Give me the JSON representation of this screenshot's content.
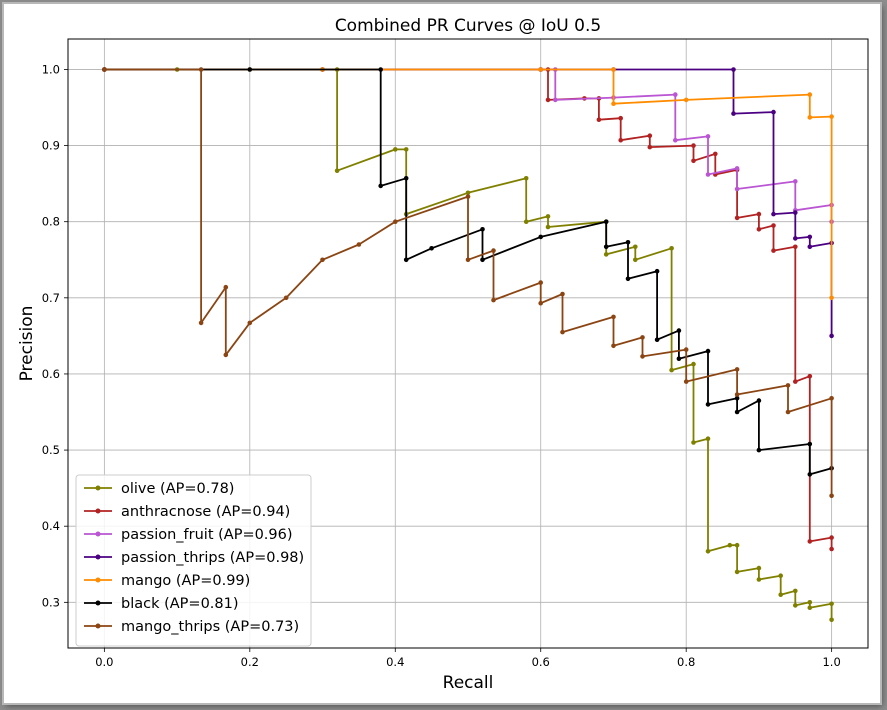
{
  "chart_data": {
    "type": "line",
    "title": "Combined PR Curves @ IoU 0.5",
    "xlabel": "Recall",
    "ylabel": "Precision",
    "xlim": [
      -0.05,
      1.05
    ],
    "ylim": [
      0.24,
      1.04
    ],
    "x_ticks": [
      "0.0",
      "0.2",
      "0.4",
      "0.6",
      "0.8",
      "1.0"
    ],
    "y_ticks": [
      "0.3",
      "0.4",
      "0.5",
      "0.6",
      "0.7",
      "0.8",
      "0.9",
      "1.0"
    ],
    "grid": true,
    "legend_position": "lower-left",
    "series": [
      {
        "name": "olive (AP=0.78)",
        "color": "#808000",
        "points": [
          [
            0,
            1
          ],
          [
            0.1,
            1
          ],
          [
            0.2,
            1
          ],
          [
            0.3,
            1
          ],
          [
            0.32,
            1
          ],
          [
            0.32,
            0.867
          ],
          [
            0.4,
            0.895
          ],
          [
            0.415,
            0.895
          ],
          [
            0.415,
            0.81
          ],
          [
            0.5,
            0.838
          ],
          [
            0.58,
            0.857
          ],
          [
            0.58,
            0.8
          ],
          [
            0.61,
            0.807
          ],
          [
            0.61,
            0.793
          ],
          [
            0.69,
            0.8
          ],
          [
            0.69,
            0.757
          ],
          [
            0.73,
            0.767
          ],
          [
            0.73,
            0.75
          ],
          [
            0.78,
            0.765
          ],
          [
            0.78,
            0.605
          ],
          [
            0.81,
            0.613
          ],
          [
            0.81,
            0.51
          ],
          [
            0.83,
            0.515
          ],
          [
            0.83,
            0.367
          ],
          [
            0.86,
            0.375
          ],
          [
            0.87,
            0.375
          ],
          [
            0.87,
            0.34
          ],
          [
            0.9,
            0.345
          ],
          [
            0.9,
            0.33
          ],
          [
            0.93,
            0.335
          ],
          [
            0.93,
            0.31
          ],
          [
            0.95,
            0.315
          ],
          [
            0.95,
            0.296
          ],
          [
            0.97,
            0.3
          ],
          [
            0.97,
            0.293
          ],
          [
            1.0,
            0.298
          ],
          [
            1.0,
            0.277
          ]
        ]
      },
      {
        "name": "anthracnose (AP=0.94)",
        "color": "#b22222",
        "points": [
          [
            0,
            1
          ],
          [
            0.3,
            1
          ],
          [
            0.6,
            1
          ],
          [
            0.61,
            1
          ],
          [
            0.61,
            0.96
          ],
          [
            0.66,
            0.962
          ],
          [
            0.68,
            0.962
          ],
          [
            0.68,
            0.934
          ],
          [
            0.71,
            0.936
          ],
          [
            0.71,
            0.907
          ],
          [
            0.75,
            0.913
          ],
          [
            0.75,
            0.898
          ],
          [
            0.81,
            0.9
          ],
          [
            0.81,
            0.88
          ],
          [
            0.84,
            0.889
          ],
          [
            0.84,
            0.862
          ],
          [
            0.87,
            0.868
          ],
          [
            0.87,
            0.805
          ],
          [
            0.9,
            0.81
          ],
          [
            0.9,
            0.79
          ],
          [
            0.92,
            0.795
          ],
          [
            0.92,
            0.762
          ],
          [
            0.95,
            0.767
          ],
          [
            0.95,
            0.59
          ],
          [
            0.97,
            0.597
          ],
          [
            0.97,
            0.38
          ],
          [
            1.0,
            0.385
          ],
          [
            1.0,
            0.37
          ]
        ]
      },
      {
        "name": "passion_fruit (AP=0.96)",
        "color": "#ba55d3",
        "points": [
          [
            0,
            1
          ],
          [
            0.3,
            1
          ],
          [
            0.6,
            1
          ],
          [
            0.62,
            1
          ],
          [
            0.62,
            0.96
          ],
          [
            0.7,
            0.963
          ],
          [
            0.785,
            0.967
          ],
          [
            0.785,
            0.907
          ],
          [
            0.83,
            0.912
          ],
          [
            0.83,
            0.862
          ],
          [
            0.87,
            0.87
          ],
          [
            0.87,
            0.843
          ],
          [
            0.95,
            0.853
          ],
          [
            0.95,
            0.815
          ],
          [
            1.0,
            0.822
          ],
          [
            1.0,
            0.8
          ]
        ]
      },
      {
        "name": "passion_thrips (AP=0.98)",
        "color": "#4b0082",
        "points": [
          [
            0,
            1
          ],
          [
            0.3,
            1
          ],
          [
            0.6,
            1
          ],
          [
            0.7,
            1
          ],
          [
            0.865,
            1
          ],
          [
            0.865,
            0.942
          ],
          [
            0.92,
            0.944
          ],
          [
            0.92,
            0.81
          ],
          [
            0.95,
            0.812
          ],
          [
            0.95,
            0.778
          ],
          [
            0.97,
            0.78
          ],
          [
            0.97,
            0.767
          ],
          [
            1.0,
            0.772
          ],
          [
            1.0,
            0.65
          ]
        ]
      },
      {
        "name": "mango (AP=0.99)",
        "color": "#ff8c00",
        "points": [
          [
            0,
            1
          ],
          [
            0.3,
            1
          ],
          [
            0.6,
            1
          ],
          [
            0.7,
            1
          ],
          [
            0.7,
            0.955
          ],
          [
            0.8,
            0.96
          ],
          [
            0.97,
            0.967
          ],
          [
            0.97,
            0.937
          ],
          [
            1.0,
            0.938
          ],
          [
            1.0,
            0.7
          ]
        ]
      },
      {
        "name": "black (AP=0.81)",
        "color": "#000000",
        "points": [
          [
            0,
            1
          ],
          [
            0.2,
            1
          ],
          [
            0.38,
            1
          ],
          [
            0.38,
            0.847
          ],
          [
            0.415,
            0.857
          ],
          [
            0.415,
            0.75
          ],
          [
            0.45,
            0.765
          ],
          [
            0.52,
            0.79
          ],
          [
            0.52,
            0.75
          ],
          [
            0.6,
            0.78
          ],
          [
            0.69,
            0.8
          ],
          [
            0.69,
            0.767
          ],
          [
            0.72,
            0.773
          ],
          [
            0.72,
            0.725
          ],
          [
            0.76,
            0.735
          ],
          [
            0.76,
            0.645
          ],
          [
            0.79,
            0.657
          ],
          [
            0.79,
            0.62
          ],
          [
            0.83,
            0.63
          ],
          [
            0.83,
            0.56
          ],
          [
            0.87,
            0.568
          ],
          [
            0.87,
            0.55
          ],
          [
            0.9,
            0.565
          ],
          [
            0.9,
            0.5
          ],
          [
            0.97,
            0.508
          ],
          [
            0.97,
            0.468
          ],
          [
            1.0,
            0.476
          ]
        ]
      },
      {
        "name": "mango_thrips (AP=0.73)",
        "color": "#8b4513",
        "points": [
          [
            0,
            1
          ],
          [
            0.133,
            1
          ],
          [
            0.133,
            0.667
          ],
          [
            0.167,
            0.714
          ],
          [
            0.167,
            0.625
          ],
          [
            0.2,
            0.667
          ],
          [
            0.25,
            0.7
          ],
          [
            0.3,
            0.75
          ],
          [
            0.35,
            0.77
          ],
          [
            0.4,
            0.8
          ],
          [
            0.5,
            0.833
          ],
          [
            0.5,
            0.75
          ],
          [
            0.535,
            0.762
          ],
          [
            0.535,
            0.697
          ],
          [
            0.6,
            0.72
          ],
          [
            0.6,
            0.693
          ],
          [
            0.63,
            0.705
          ],
          [
            0.63,
            0.655
          ],
          [
            0.7,
            0.675
          ],
          [
            0.7,
            0.637
          ],
          [
            0.74,
            0.648
          ],
          [
            0.74,
            0.623
          ],
          [
            0.8,
            0.632
          ],
          [
            0.8,
            0.59
          ],
          [
            0.87,
            0.606
          ],
          [
            0.87,
            0.573
          ],
          [
            0.94,
            0.585
          ],
          [
            0.94,
            0.55
          ],
          [
            1.0,
            0.568
          ],
          [
            1.0,
            0.44
          ]
        ]
      }
    ]
  }
}
